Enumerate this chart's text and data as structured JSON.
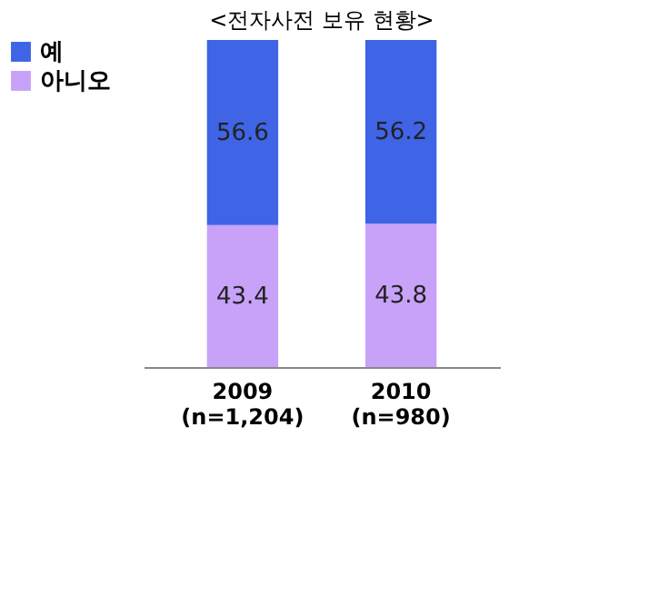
{
  "chart_data": {
    "type": "bar",
    "title": "<전자사전 보유 현황>",
    "stacked": true,
    "data_labels": true,
    "legend": "left",
    "categories": [
      "2009\n(n=1,204)",
      "2010\n(n=980)"
    ],
    "series": [
      {
        "name": "아니오",
        "color": "#c8a2f8",
        "values": [
          43.4,
          43.8
        ]
      },
      {
        "name": "예",
        "color": "#3f64e6",
        "values": [
          56.6,
          56.2
        ]
      }
    ]
  }
}
